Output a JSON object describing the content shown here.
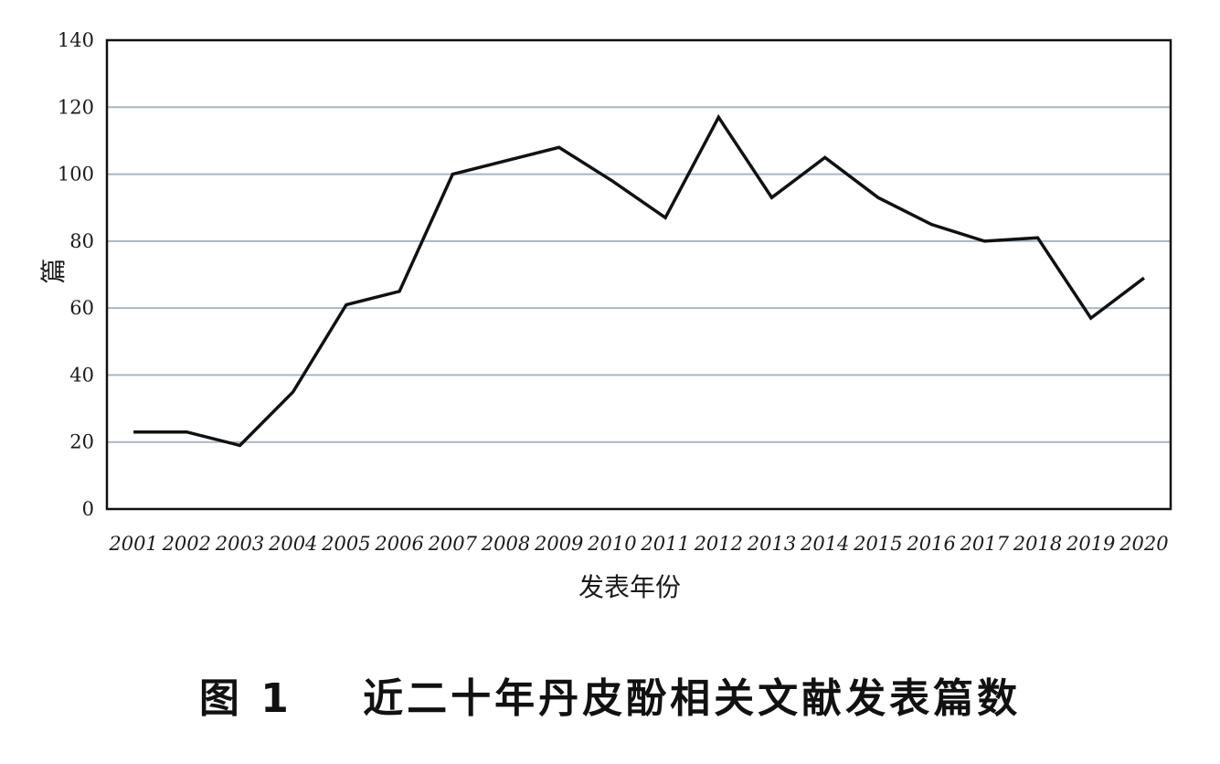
{
  "caption": "图 1    近二十年丹皮酚相关文献发表篇数",
  "chart_data": {
    "type": "line",
    "title": "",
    "xlabel": "发表年份",
    "ylabel": "篇",
    "ylim": [
      0,
      140
    ],
    "yticks": [
      0,
      20,
      40,
      60,
      80,
      100,
      120,
      140
    ],
    "grid": true,
    "categories": [
      "2001",
      "2002",
      "2003",
      "2004",
      "2005",
      "2006",
      "2007",
      "2008",
      "2009",
      "2010",
      "2011",
      "2012",
      "2013",
      "2014",
      "2015",
      "2016",
      "2017",
      "2018",
      "2019",
      "2020"
    ],
    "values": [
      23,
      23,
      19,
      35,
      61,
      65,
      100,
      104,
      108,
      98,
      87,
      117,
      93,
      105,
      93,
      85,
      80,
      81,
      57,
      69
    ],
    "colors": {
      "line": "#111111",
      "grid": "#a9b6c4",
      "axis": "#111111"
    }
  }
}
